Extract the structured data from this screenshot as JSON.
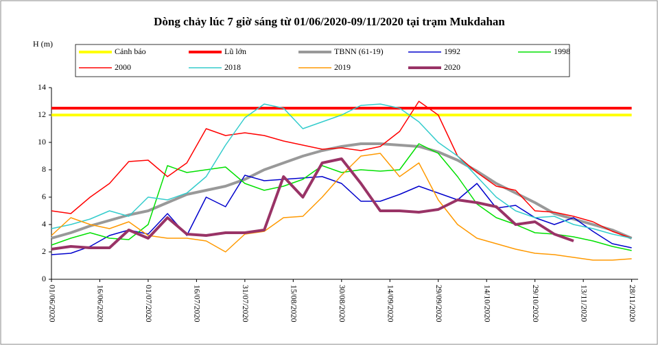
{
  "chart_data": {
    "type": "line",
    "title": "Dòng chảy lúc 7 giờ sáng từ 01/06/2020-09/11/2020 tại trạm Mukdahan",
    "y_label": "H (m)",
    "x": [
      0,
      6,
      12,
      18,
      24,
      30,
      36,
      42,
      48,
      54,
      60,
      66,
      72,
      78,
      84,
      90,
      96,
      102,
      108,
      114,
      120,
      126,
      132,
      138,
      144,
      150,
      156,
      162,
      168,
      174,
      180
    ],
    "xlim": [
      0,
      182
    ],
    "xticks": [
      {
        "value": 0,
        "label": "01/06/2020"
      },
      {
        "value": 15,
        "label": "16/06/2020"
      },
      {
        "value": 30,
        "label": "01/07/2020"
      },
      {
        "value": 45,
        "label": "16/07/2020"
      },
      {
        "value": 60,
        "label": "31/07/2020"
      },
      {
        "value": 75,
        "label": "15/08/2020"
      },
      {
        "value": 90,
        "label": "30/08/2020"
      },
      {
        "value": 105,
        "label": "14/09/2020"
      },
      {
        "value": 120,
        "label": "29/09/2020"
      },
      {
        "value": 135,
        "label": "14/10/2020"
      },
      {
        "value": 150,
        "label": "29/10/2020"
      },
      {
        "value": 165,
        "label": "13/11/2020"
      },
      {
        "value": 180,
        "label": "28/11/2020"
      }
    ],
    "ylim": [
      0,
      14
    ],
    "yticks": [
      0,
      2,
      4,
      6,
      8,
      10,
      12,
      14
    ],
    "series": [
      {
        "name": "Cảnh báo",
        "color": "#ffff00",
        "width": 4,
        "values": [
          12,
          12,
          12,
          12,
          12,
          12,
          12,
          12,
          12,
          12,
          12,
          12,
          12,
          12,
          12,
          12,
          12,
          12,
          12,
          12,
          12,
          12,
          12,
          12,
          12,
          12,
          12,
          12,
          12,
          12,
          12
        ]
      },
      {
        "name": "Lũ lớn",
        "color": "#ff0000",
        "width": 4,
        "values": [
          12.5,
          12.5,
          12.5,
          12.5,
          12.5,
          12.5,
          12.5,
          12.5,
          12.5,
          12.5,
          12.5,
          12.5,
          12.5,
          12.5,
          12.5,
          12.5,
          12.5,
          12.5,
          12.5,
          12.5,
          12.5,
          12.5,
          12.5,
          12.5,
          12.5,
          12.5,
          12.5,
          12.5,
          12.5,
          12.5,
          12.5
        ]
      },
      {
        "name": "TBNN (61-19)",
        "color": "#999999",
        "width": 4,
        "values": [
          3.0,
          3.4,
          3.9,
          4.3,
          4.7,
          5.0,
          5.6,
          6.2,
          6.5,
          6.8,
          7.3,
          8.0,
          8.5,
          9.0,
          9.4,
          9.7,
          9.9,
          9.9,
          9.8,
          9.7,
          9.3,
          8.7,
          7.9,
          7.0,
          6.3,
          5.6,
          4.8,
          4.4,
          4.0,
          3.6,
          3.0
        ]
      },
      {
        "name": "1992",
        "color": "#0000cc",
        "width": 1.5,
        "values": [
          1.8,
          1.9,
          2.4,
          3.2,
          3.6,
          3.3,
          4.8,
          3.2,
          6.0,
          5.3,
          7.6,
          7.2,
          7.3,
          7.4,
          7.5,
          7.0,
          5.7,
          5.7,
          6.2,
          6.8,
          6.3,
          5.8,
          7.0,
          5.2,
          5.4,
          4.5,
          4.0,
          4.5,
          3.5,
          2.6,
          2.3
        ]
      },
      {
        "name": "1998",
        "color": "#00e000",
        "width": 1.5,
        "values": [
          2.5,
          3.0,
          3.4,
          3.0,
          2.9,
          4.0,
          8.3,
          7.8,
          8.0,
          8.2,
          7.0,
          6.5,
          6.8,
          7.3,
          8.3,
          7.8,
          8.0,
          7.9,
          8.0,
          9.9,
          9.2,
          7.5,
          5.5,
          4.5,
          4.0,
          3.4,
          3.3,
          3.1,
          2.8,
          2.4,
          2.1
        ]
      },
      {
        "name": "2000",
        "color": "#ff0000",
        "width": 1.5,
        "values": [
          5.0,
          4.8,
          6.0,
          7.0,
          8.6,
          8.7,
          7.5,
          8.5,
          11.0,
          10.5,
          10.7,
          10.5,
          10.1,
          9.8,
          9.5,
          9.6,
          9.4,
          9.7,
          10.8,
          13.0,
          12.0,
          9.0,
          7.8,
          6.8,
          6.5,
          5.0,
          4.9,
          4.6,
          4.2,
          3.5,
          3.0
        ]
      },
      {
        "name": "2018",
        "color": "#33cccc",
        "width": 1.5,
        "values": [
          3.7,
          4.0,
          4.4,
          5.0,
          4.6,
          6.0,
          5.8,
          6.3,
          7.5,
          9.8,
          11.8,
          12.8,
          12.5,
          11.0,
          11.5,
          12.0,
          12.7,
          12.8,
          12.5,
          11.5,
          10.0,
          9.0,
          7.5,
          6.0,
          5.0,
          4.5,
          4.6,
          4.0,
          3.7,
          3.3,
          3.0
        ]
      },
      {
        "name": "2019",
        "color": "#ff9900",
        "width": 1.5,
        "values": [
          3.2,
          4.5,
          4.0,
          3.7,
          4.2,
          3.2,
          3.0,
          3.0,
          2.8,
          2.0,
          3.3,
          3.5,
          4.5,
          4.6,
          6.0,
          7.6,
          9.0,
          9.2,
          7.5,
          8.5,
          5.8,
          4.0,
          3.0,
          2.6,
          2.2,
          1.9,
          1.8,
          1.6,
          1.4,
          1.4,
          1.5
        ]
      },
      {
        "name": "2020",
        "color": "#993366",
        "width": 4,
        "values": [
          2.2,
          2.4,
          2.3,
          2.3,
          3.6,
          3.0,
          4.5,
          3.3,
          3.2,
          3.4,
          3.4,
          3.6,
          7.5,
          6.0,
          8.5,
          8.8,
          7.0,
          5.0,
          5.0,
          4.9,
          5.1,
          5.8,
          5.6,
          5.3,
          4.0,
          4.2,
          3.3,
          2.8,
          null,
          null,
          null
        ]
      }
    ]
  }
}
